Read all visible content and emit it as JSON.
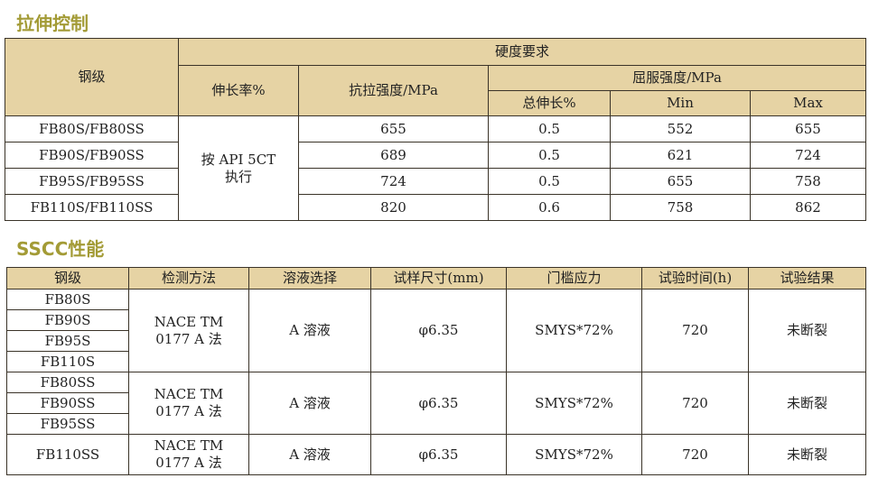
{
  "tensile": {
    "title": "拉伸控制",
    "headers": {
      "grade": "钢级",
      "hardness": "硬度要求",
      "elongation": "伸长率%",
      "tensile_strength": "抗拉强度/MPa",
      "yield_strength": "屈服强度/MPa",
      "total_elongation": "总伸长%",
      "min": "Min",
      "max": "Max"
    },
    "elongation_note": "按 API 5CT\n执行",
    "rows": [
      {
        "grade": "FB80S/FB80SS",
        "tensile": "655",
        "total_elong": "0.5",
        "min": "552",
        "max": "655"
      },
      {
        "grade": "FB90S/FB90SS",
        "tensile": "689",
        "total_elong": "0.5",
        "min": "621",
        "max": "724"
      },
      {
        "grade": "FB95S/FB95SS",
        "tensile": "724",
        "total_elong": "0.5",
        "min": "655",
        "max": "758"
      },
      {
        "grade": "FB110S/FB110SS",
        "tensile": "820",
        "total_elong": "0.6",
        "min": "758",
        "max": "862"
      }
    ]
  },
  "sscc": {
    "title": "SSCC性能",
    "headers": [
      "钢级",
      "检测方法",
      "溶液选择",
      "试样尺寸(mm)",
      "门槛应力",
      "试验时间(h)",
      "试验结果"
    ],
    "groups": [
      {
        "grades": [
          "FB80S",
          "FB90S",
          "FB95S",
          "FB110S"
        ],
        "method": "NACE TM\n0177 A 法",
        "solution": "A 溶液",
        "size": "φ6.35",
        "stress": "SMYS*72%",
        "time": "720",
        "result": "未断裂"
      },
      {
        "grades": [
          "FB80SS",
          "FB90SS",
          "FB95SS"
        ],
        "method": "NACE TM\n0177 A 法",
        "solution": "A 溶液",
        "size": "φ6.35",
        "stress": "SMYS*72%",
        "time": "720",
        "result": "未断裂"
      },
      {
        "grades": [
          "FB110SS"
        ],
        "method": "NACE TM\n0177 A 法",
        "solution": "A 溶液",
        "size": "φ6.35",
        "stress": "SMYS*72%",
        "time": "720",
        "result": "未断裂"
      }
    ]
  },
  "colors": {
    "header_bg": "#e6d3a4",
    "title": "#a39b36"
  }
}
